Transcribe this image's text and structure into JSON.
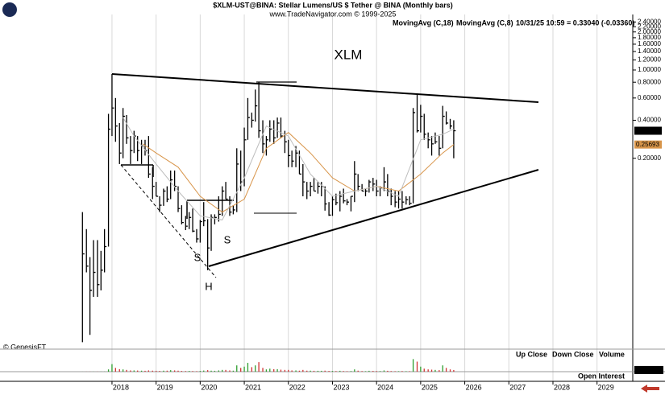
{
  "chart_data": {
    "type": "ohlc",
    "title": "$XLM-UST@BINA:  Stellar Lumens/US $ Tether @ BINA  (Monthly bars)",
    "subtitle": "www.TradeNavigator.com © 1999-2025",
    "timestamp_label": "10/31/25 10:59 = 0.33040 (-0.03360)",
    "symbol_label": "XLM",
    "pattern_labels": [
      "S",
      "H",
      "S"
    ],
    "copyright": "© GenesisFT",
    "bar_color": "#000000",
    "xlim": [
      2015.46,
      2029.81
    ],
    "xticks": [
      2018,
      2019,
      2020,
      2021,
      2022,
      2023,
      2024,
      2025,
      2026,
      2027,
      2028,
      2029
    ],
    "ylim": [
      0.00635,
      2.75
    ],
    "log_scale": true,
    "yticks": [
      {
        "value": 2.4,
        "label": "2.40000"
      },
      {
        "value": 2.2,
        "label": "2.20000"
      },
      {
        "value": 2.0,
        "label": "2.00000"
      },
      {
        "value": 1.8,
        "label": "1.80000"
      },
      {
        "value": 1.6,
        "label": "1.60000"
      },
      {
        "value": 1.4,
        "label": "1.40000"
      },
      {
        "value": 1.2,
        "label": "1.20000"
      },
      {
        "value": 1.0,
        "label": "1.00000"
      },
      {
        "value": 0.8,
        "label": "0.80000"
      },
      {
        "value": 0.6,
        "label": "0.60000"
      },
      {
        "value": 0.4,
        "label": "0.40000"
      },
      {
        "value": 0.2,
        "label": "0.20000"
      }
    ],
    "x": [
      2017.33,
      2017.42,
      2017.5,
      2017.58,
      2017.67,
      2017.75,
      2017.83,
      2017.92,
      2018,
      2018.08,
      2018.17,
      2018.25,
      2018.33,
      2018.42,
      2018.5,
      2018.58,
      2018.67,
      2018.75,
      2018.83,
      2018.92,
      2019,
      2019.08,
      2019.17,
      2019.25,
      2019.33,
      2019.42,
      2019.5,
      2019.58,
      2019.67,
      2019.75,
      2019.83,
      2019.92,
      2020,
      2020.08,
      2020.17,
      2020.25,
      2020.33,
      2020.42,
      2020.5,
      2020.58,
      2020.67,
      2020.75,
      2020.83,
      2020.92,
      2021,
      2021.08,
      2021.17,
      2021.25,
      2021.33,
      2021.42,
      2021.5,
      2021.58,
      2021.67,
      2021.75,
      2021.83,
      2021.92,
      2022,
      2022.08,
      2022.17,
      2022.25,
      2022.33,
      2022.42,
      2022.5,
      2022.58,
      2022.67,
      2022.75,
      2022.83,
      2022.92,
      2023,
      2023.08,
      2023.17,
      2023.25,
      2023.33,
      2023.42,
      2023.5,
      2023.58,
      2023.67,
      2023.75,
      2023.83,
      2023.92,
      2024,
      2024.08,
      2024.17,
      2024.25,
      2024.33,
      2024.42,
      2024.5,
      2024.58,
      2024.67,
      2024.75,
      2024.83,
      2024.92,
      2025,
      2025.08,
      2025.17,
      2025.25,
      2025.33,
      2025.42,
      2025.5,
      2025.58,
      2025.67,
      2025.75
    ],
    "high": [
      0.075,
      0.055,
      0.033,
      0.045,
      0.045,
      0.037,
      0.055,
      0.45,
      0.93,
      0.6,
      0.38,
      0.5,
      0.44,
      0.3,
      0.33,
      0.3,
      0.28,
      0.28,
      0.3,
      0.17,
      0.13,
      0.1,
      0.115,
      0.12,
      0.16,
      0.16,
      0.12,
      0.085,
      0.07,
      0.075,
      0.08,
      0.055,
      0.065,
      0.09,
      0.066,
      0.072,
      0.072,
      0.1,
      0.12,
      0.13,
      0.1,
      0.085,
      0.24,
      0.23,
      0.35,
      0.6,
      0.46,
      0.7,
      0.8,
      0.4,
      0.3,
      0.4,
      0.4,
      0.42,
      0.42,
      0.33,
      0.28,
      0.23,
      0.25,
      0.23,
      0.18,
      0.13,
      0.13,
      0.14,
      0.13,
      0.13,
      0.12,
      0.09,
      0.1,
      0.105,
      0.11,
      0.115,
      0.095,
      0.1,
      0.19,
      0.15,
      0.125,
      0.115,
      0.135,
      0.14,
      0.135,
      0.12,
      0.17,
      0.15,
      0.115,
      0.11,
      0.11,
      0.11,
      0.1,
      0.1,
      0.5,
      0.64,
      0.53,
      0.45,
      0.32,
      0.3,
      0.32,
      0.3,
      0.52,
      0.47,
      0.41,
      0.4
    ],
    "low": [
      0.007,
      0.025,
      0.008,
      0.016,
      0.016,
      0.018,
      0.025,
      0.04,
      0.3,
      0.27,
      0.18,
      0.2,
      0.26,
      0.18,
      0.22,
      0.19,
      0.18,
      0.21,
      0.14,
      0.095,
      0.1,
      0.075,
      0.084,
      0.09,
      0.095,
      0.11,
      0.075,
      0.06,
      0.054,
      0.055,
      0.052,
      0.043,
      0.043,
      0.058,
      0.026,
      0.037,
      0.06,
      0.063,
      0.07,
      0.095,
      0.07,
      0.072,
      0.075,
      0.11,
      0.12,
      0.28,
      0.35,
      0.39,
      0.29,
      0.22,
      0.21,
      0.27,
      0.26,
      0.29,
      0.29,
      0.22,
      0.17,
      0.17,
      0.17,
      0.15,
      0.1,
      0.095,
      0.1,
      0.11,
      0.105,
      0.1,
      0.077,
      0.07,
      0.07,
      0.085,
      0.076,
      0.088,
      0.085,
      0.076,
      0.09,
      0.11,
      0.11,
      0.1,
      0.107,
      0.11,
      0.1,
      0.1,
      0.11,
      0.1,
      0.085,
      0.082,
      0.08,
      0.08,
      0.086,
      0.085,
      0.088,
      0.32,
      0.32,
      0.28,
      0.24,
      0.21,
      0.26,
      0.21,
      0.24,
      0.37,
      0.34,
      0.2
    ],
    "close": [
      0.035,
      0.028,
      0.018,
      0.025,
      0.02,
      0.026,
      0.04,
      0.34,
      0.5,
      0.36,
      0.22,
      0.43,
      0.29,
      0.23,
      0.3,
      0.23,
      0.25,
      0.23,
      0.15,
      0.12,
      0.1,
      0.085,
      0.11,
      0.095,
      0.135,
      0.12,
      0.08,
      0.062,
      0.058,
      0.068,
      0.053,
      0.046,
      0.063,
      0.064,
      0.039,
      0.068,
      0.068,
      0.072,
      0.11,
      0.095,
      0.075,
      0.078,
      0.18,
      0.13,
      0.28,
      0.42,
      0.4,
      0.52,
      0.33,
      0.26,
      0.28,
      0.34,
      0.29,
      0.38,
      0.3,
      0.27,
      0.21,
      0.19,
      0.22,
      0.15,
      0.13,
      0.11,
      0.12,
      0.11,
      0.12,
      0.12,
      0.087,
      0.071,
      0.094,
      0.089,
      0.1,
      0.092,
      0.09,
      0.1,
      0.15,
      0.12,
      0.11,
      0.11,
      0.13,
      0.125,
      0.11,
      0.117,
      0.13,
      0.11,
      0.1,
      0.09,
      0.095,
      0.09,
      0.094,
      0.088,
      0.46,
      0.33,
      0.43,
      0.31,
      0.28,
      0.26,
      0.27,
      0.24,
      0.43,
      0.38,
      0.36,
      0.3304
    ],
    "last_price": {
      "value": 0.3304,
      "label": "0.33040"
    },
    "moving_averages": [
      {
        "name": "MovingAvg (C,18)",
        "color": "#d8954a",
        "x": [
          2018.7,
          2019,
          2019.5,
          2020,
          2020.5,
          2021,
          2021.5,
          2022,
          2022.5,
          2023,
          2023.5,
          2024,
          2024.5,
          2025,
          2025.5,
          2025.75
        ],
        "values": [
          0.26,
          0.22,
          0.17,
          0.1,
          0.075,
          0.095,
          0.24,
          0.32,
          0.22,
          0.14,
          0.11,
          0.12,
          0.11,
          0.15,
          0.22,
          0.25693
        ],
        "last_label": {
          "value": 0.25693,
          "label": "0.25693"
        }
      },
      {
        "name": "MovingAvg (C,8)",
        "color": "#bdbdbd",
        "x": [
          2018.25,
          2018.5,
          2019,
          2019.5,
          2020,
          2020.5,
          2021,
          2021.5,
          2022,
          2022.5,
          2023,
          2023.5,
          2024,
          2024.5,
          2025,
          2025.5,
          2025.75
        ],
        "values": [
          0.42,
          0.3,
          0.18,
          0.11,
          0.07,
          0.065,
          0.14,
          0.36,
          0.3,
          0.15,
          0.1,
          0.11,
          0.12,
          0.1,
          0.28,
          0.31,
          0.34
        ]
      }
    ],
    "volume": {
      "legend": [
        {
          "name": "Up Close",
          "color": "#2e9e2e"
        },
        {
          "name": "Down Close",
          "color": "#d03030"
        },
        {
          "name": "Volume",
          "color": "#000000"
        }
      ],
      "ylim": [
        0,
        8000
      ],
      "values": [
        20,
        30,
        40,
        40,
        40,
        50,
        60,
        900,
        3000,
        1500,
        1000,
        900,
        700,
        500,
        500,
        450,
        400,
        350,
        500,
        400,
        350,
        300,
        400,
        400,
        600,
        500,
        400,
        300,
        250,
        300,
        250,
        200,
        300,
        450,
        600,
        400,
        350,
        500,
        700,
        700,
        500,
        400,
        2500,
        1500,
        2000,
        3500,
        1800,
        2500,
        3800,
        1500,
        900,
        1200,
        1000,
        1000,
        800,
        700,
        700,
        500,
        500,
        400,
        700,
        400,
        400,
        350,
        350,
        350,
        400,
        300,
        300,
        250,
        350,
        250,
        200,
        250,
        900,
        400,
        250,
        200,
        350,
        300,
        250,
        250,
        500,
        350,
        250,
        200,
        200,
        250,
        200,
        200,
        5000,
        4000,
        2000,
        1200,
        900,
        800,
        700,
        600,
        2500,
        1500,
        900,
        665.02
      ],
      "last_label": {
        "value": 665.02,
        "label": "665.02M"
      }
    },
    "open_interest_label": "Open Interest"
  }
}
